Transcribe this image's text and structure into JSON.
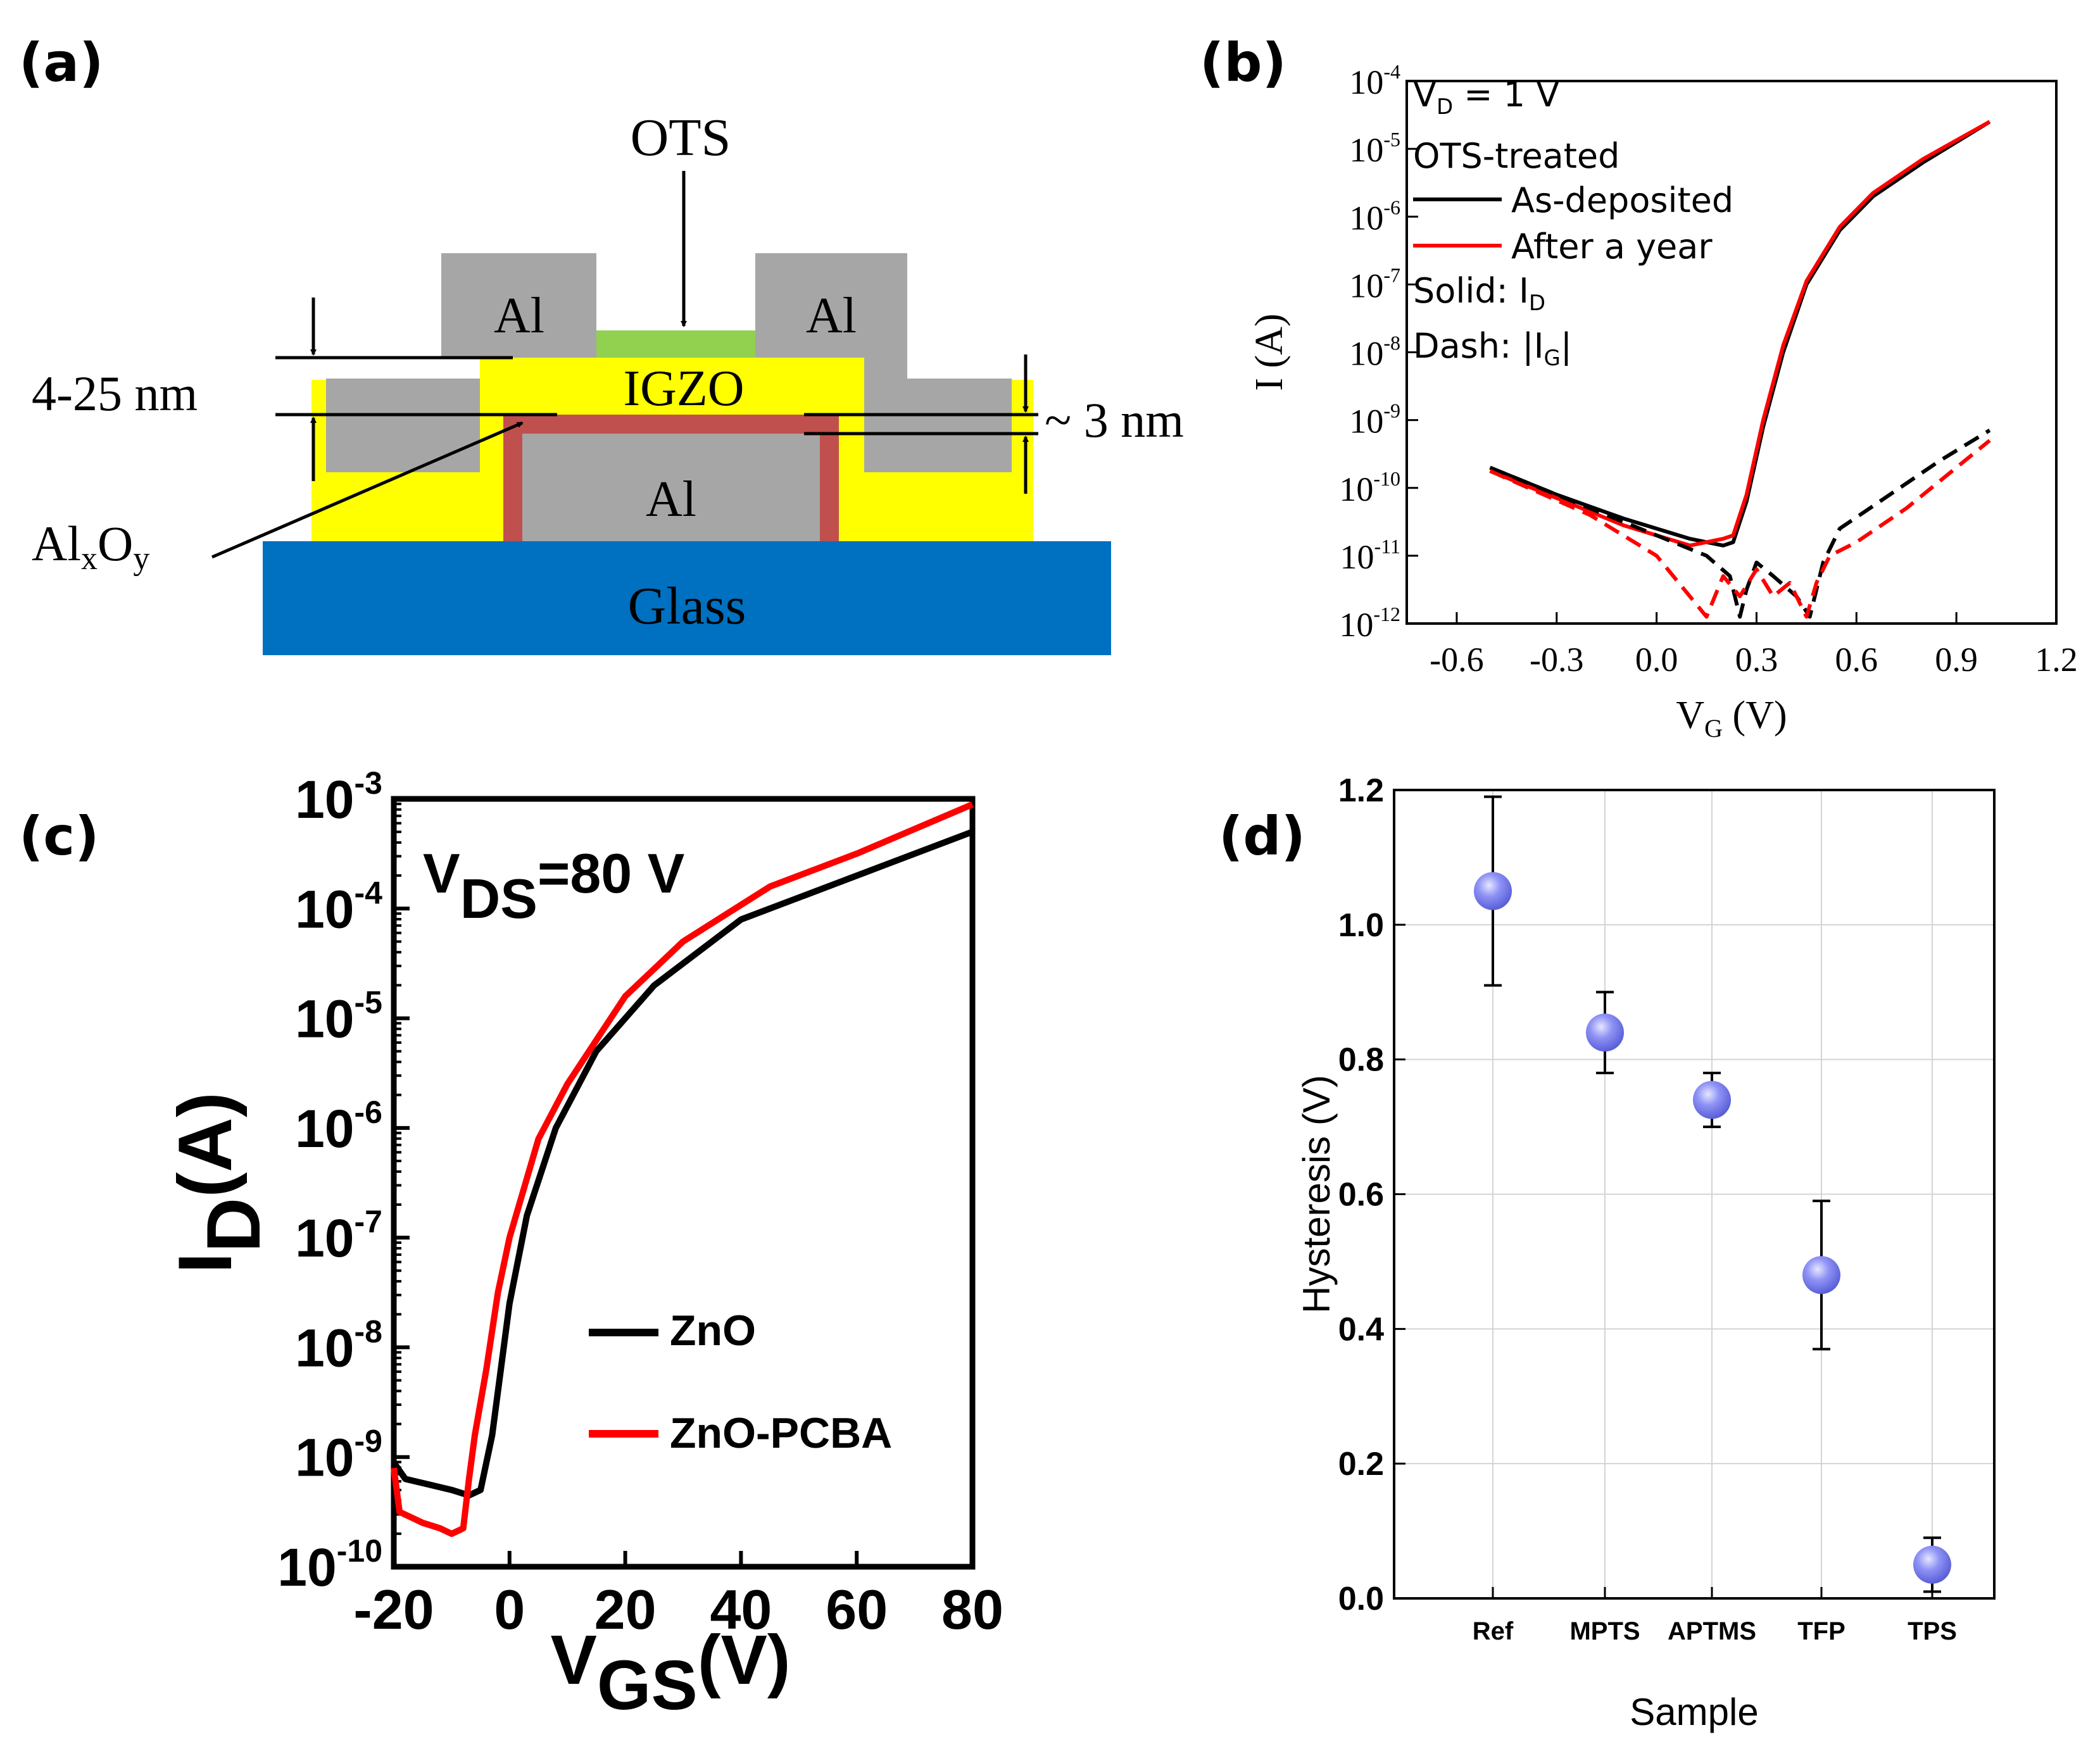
{
  "panels": {
    "a": {
      "label": "(a)",
      "layers": {
        "ots": "OTS",
        "al_left": "Al",
        "al_right": "Al",
        "al_gate": "Al",
        "igzo": "IGZO",
        "glass": "Glass",
        "oxide": "AlxOy",
        "oxide_main": "Al",
        "oxide_sub1": "x",
        "oxide_mid": "O",
        "oxide_sub2": "y"
      },
      "dimensions": {
        "thickness_igzo": "4-25 nm",
        "thickness_oxide": "~ 3 nm"
      },
      "colors": {
        "al": "#a6a6a6",
        "igzo": "#ffff00",
        "ots": "#92d050",
        "oxide": "#c0504d",
        "glass": "#0070c0"
      }
    },
    "b": {
      "label": "(b)",
      "annotations": {
        "vd": "V",
        "vd_sub": "D",
        "vd_rest": " = 1 V",
        "treatment": "OTS-treated",
        "legend_black": "As-deposited",
        "legend_red": "After a year",
        "solid": "Solid: I",
        "solid_sub": "D",
        "dash": "Dash: |I",
        "dash_sub": "G",
        "dash_end": "|"
      }
    },
    "c": {
      "label": "(c)",
      "annotations": {
        "vds": "V",
        "vds_sub": "DS",
        "vds_rest": "=80 V",
        "legend_black": "ZnO",
        "legend_red": "ZnO-PCBA"
      }
    },
    "d": {
      "label": "(d)"
    }
  },
  "chart_data": [
    {
      "panel": "b",
      "type": "line",
      "xlabel": "V",
      "xlabel_sub": "G",
      "xlabel_rest": " (V)",
      "ylabel": "I (A)",
      "xlim": [
        -0.75,
        1.2
      ],
      "ylim_log10": [
        -12,
        -4
      ],
      "yscale": "log",
      "x_ticks": [
        "-0.6",
        "-0.3",
        "0.0",
        "0.3",
        "0.6",
        "0.9",
        "1.2"
      ],
      "y_ticks": [
        "10-12",
        "10-11",
        "10-10",
        "10-9",
        "10-8",
        "10-7",
        "10-6",
        "10-5",
        "10-4"
      ],
      "series": [
        {
          "name": "As-deposited",
          "quantity": "ID",
          "color": "#000000",
          "style": "solid",
          "x": [
            -0.5,
            -0.3,
            -0.1,
            0.1,
            0.2,
            0.23,
            0.27,
            0.32,
            0.38,
            0.45,
            0.55,
            0.65,
            0.8,
            1.0
          ],
          "y_log10": [
            -9.7,
            -10.1,
            -10.45,
            -10.75,
            -10.85,
            -10.8,
            -10.2,
            -9.1,
            -8.0,
            -7.0,
            -6.2,
            -5.7,
            -5.2,
            -4.6
          ]
        },
        {
          "name": "After a year",
          "quantity": "ID",
          "color": "#ff0000",
          "style": "solid",
          "x": [
            -0.5,
            -0.3,
            -0.1,
            0.1,
            0.2,
            0.23,
            0.27,
            0.32,
            0.38,
            0.45,
            0.55,
            0.65,
            0.8,
            1.0
          ],
          "y_log10": [
            -9.75,
            -10.15,
            -10.55,
            -10.85,
            -10.75,
            -10.7,
            -10.1,
            -9.0,
            -7.9,
            -6.95,
            -6.15,
            -5.65,
            -5.15,
            -4.6
          ]
        },
        {
          "name": "As-deposited",
          "quantity": "IG",
          "color": "#000000",
          "style": "dash",
          "x": [
            -0.5,
            -0.2,
            0.0,
            0.15,
            0.22,
            0.25,
            0.27,
            0.3,
            0.35,
            0.42,
            0.46,
            0.5,
            0.55,
            0.7,
            0.85,
            1.0
          ],
          "y_log10": [
            -9.7,
            -10.3,
            -10.7,
            -11.0,
            -11.3,
            -11.9,
            -11.5,
            -11.1,
            -11.3,
            -11.6,
            -11.9,
            -11.1,
            -10.6,
            -10.1,
            -9.6,
            -9.15
          ]
        },
        {
          "name": "After a year",
          "quantity": "IG",
          "color": "#ff0000",
          "style": "dash",
          "x": [
            -0.5,
            -0.2,
            0.0,
            0.1,
            0.15,
            0.2,
            0.25,
            0.3,
            0.35,
            0.4,
            0.45,
            0.48,
            0.52,
            0.6,
            0.75,
            0.9,
            1.0
          ],
          "y_log10": [
            -9.75,
            -10.4,
            -11.0,
            -11.6,
            -11.9,
            -11.3,
            -11.6,
            -11.2,
            -11.6,
            -11.4,
            -11.9,
            -11.4,
            -11.0,
            -10.8,
            -10.3,
            -9.7,
            -9.3
          ]
        }
      ]
    },
    {
      "panel": "c",
      "type": "line",
      "xlabel": "V",
      "xlabel_sub": "GS",
      "xlabel_rest": "(V)",
      "ylabel": "I",
      "ylabel_sub": "D",
      "ylabel_rest": "(A)",
      "xlim": [
        -20,
        80
      ],
      "ylim_log10": [
        -10,
        -3
      ],
      "yscale": "log",
      "x_ticks": [
        "-20",
        "0",
        "20",
        "40",
        "60",
        "80"
      ],
      "y_ticks": [
        "10-10",
        "10-9",
        "10-8",
        "10-7",
        "10-6",
        "10-5",
        "10-4",
        "10-3"
      ],
      "series": [
        {
          "name": "ZnO",
          "color": "#000000",
          "x": [
            -20,
            -18,
            -14,
            -10,
            -7,
            -5,
            -3,
            0,
            3,
            8,
            15,
            25,
            40,
            60,
            80
          ],
          "y_log10": [
            -9.05,
            -9.2,
            -9.25,
            -9.3,
            -9.35,
            -9.3,
            -8.8,
            -7.6,
            -6.8,
            -6.0,
            -5.3,
            -4.7,
            -4.1,
            -3.7,
            -3.3
          ]
        },
        {
          "name": "ZnO-PCBA",
          "color": "#ff0000",
          "x": [
            -20,
            -19,
            -17,
            -15,
            -12,
            -10,
            -8,
            -7,
            -6,
            -4,
            -2,
            0,
            5,
            10,
            20,
            30,
            45,
            60,
            80
          ],
          "y_log10": [
            -9.1,
            -9.5,
            -9.55,
            -9.6,
            -9.65,
            -9.7,
            -9.65,
            -9.2,
            -8.8,
            -8.2,
            -7.5,
            -7.0,
            -6.1,
            -5.6,
            -4.8,
            -4.3,
            -3.8,
            -3.5,
            -3.05
          ]
        }
      ]
    },
    {
      "panel": "d",
      "type": "scatter",
      "xlabel": "Sample",
      "ylabel": "Hysteresis (V)",
      "categories": [
        "Ref",
        "MPTS",
        "APTMS",
        "TFP",
        "TPS"
      ],
      "values": [
        1.05,
        0.84,
        0.74,
        0.48,
        0.05
      ],
      "error_low": [
        0.91,
        0.78,
        0.7,
        0.37,
        0.01
      ],
      "error_high": [
        1.19,
        0.9,
        0.78,
        0.59,
        0.09
      ],
      "ylim": [
        0,
        1.2
      ],
      "y_ticks": [
        "0.0",
        "0.2",
        "0.4",
        "0.6",
        "0.8",
        "1.0",
        "1.2"
      ],
      "grid": true,
      "marker_color": "#7b7ff0"
    }
  ]
}
